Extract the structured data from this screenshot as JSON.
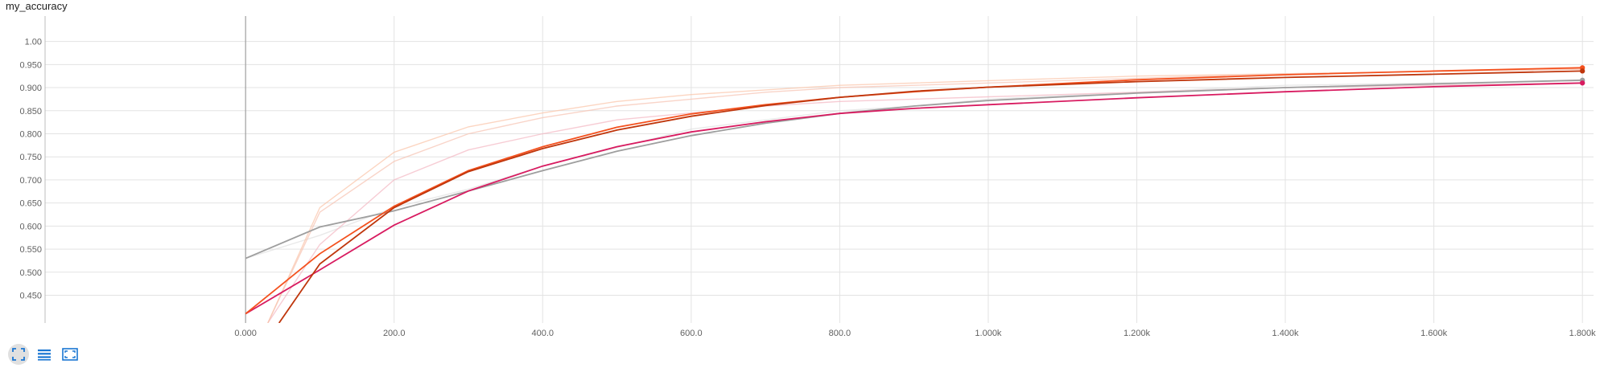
{
  "chart_data": {
    "type": "line",
    "title": "my_accuracy",
    "xlabel": "",
    "ylabel": "",
    "xlim": [
      -270,
      1815
    ],
    "ylim": [
      0.39,
      1.055
    ],
    "x_ticks": [
      0,
      200,
      400,
      600,
      800,
      1000,
      1200,
      1400,
      1600,
      1800
    ],
    "x_tick_labels": [
      "0.000",
      "200.0",
      "400.0",
      "600.0",
      "800.0",
      "1.000k",
      "1.200k",
      "1.400k",
      "1.600k",
      "1.800k"
    ],
    "y_ticks": [
      0.45,
      0.5,
      0.55,
      0.6,
      0.65,
      0.7,
      0.75,
      0.8,
      0.85,
      0.9,
      0.95,
      1.0
    ],
    "y_tick_labels": [
      "0.450",
      "0.500",
      "0.550",
      "0.600",
      "0.650",
      "0.700",
      "0.750",
      "0.800",
      "0.850",
      "0.900",
      "0.950",
      "1.00"
    ],
    "grid": true,
    "series": [
      {
        "color": "#e0e0e0",
        "faint": true,
        "x": [
          0,
          100,
          200,
          300,
          400,
          500,
          600,
          700,
          800,
          900,
          1000,
          1200,
          1400,
          1600,
          1800
        ],
        "y": [
          0.53,
          0.58,
          0.64,
          0.68,
          0.73,
          0.77,
          0.81,
          0.83,
          0.85,
          0.86,
          0.875,
          0.89,
          0.905,
          0.91,
          0.915
        ]
      },
      {
        "color": "#f4b6c2",
        "faint": true,
        "x": [
          30,
          100,
          200,
          300,
          400,
          500,
          600,
          700,
          800,
          900,
          1000,
          1200,
          1400,
          1600,
          1800
        ],
        "y": [
          0.39,
          0.56,
          0.7,
          0.765,
          0.8,
          0.83,
          0.845,
          0.86,
          0.87,
          0.875,
          0.88,
          0.89,
          0.9,
          0.905,
          0.91
        ]
      },
      {
        "color": "#fbc3a6",
        "faint": true,
        "x": [
          30,
          100,
          200,
          300,
          400,
          500,
          600,
          700,
          800,
          900,
          1000,
          1200,
          1400,
          1600,
          1800
        ],
        "y": [
          0.39,
          0.64,
          0.76,
          0.815,
          0.845,
          0.87,
          0.885,
          0.895,
          0.905,
          0.91,
          0.915,
          0.925,
          0.93,
          0.935,
          0.94
        ]
      },
      {
        "color": "#f7c2b0",
        "faint": true,
        "x": [
          30,
          100,
          200,
          300,
          400,
          500,
          600,
          700,
          800,
          900,
          1000,
          1200,
          1400,
          1600,
          1800
        ],
        "y": [
          0.39,
          0.63,
          0.74,
          0.8,
          0.835,
          0.86,
          0.875,
          0.89,
          0.9,
          0.905,
          0.91,
          0.92,
          0.93,
          0.935,
          0.94
        ]
      },
      {
        "color": "#9e9e9e",
        "faint": false,
        "x": [
          0,
          100,
          200,
          300,
          400,
          500,
          600,
          700,
          800,
          900,
          1000,
          1200,
          1400,
          1600,
          1800
        ],
        "y": [
          0.53,
          0.598,
          0.633,
          0.676,
          0.72,
          0.762,
          0.796,
          0.823,
          0.844,
          0.86,
          0.872,
          0.888,
          0.9,
          0.908,
          0.916
        ]
      },
      {
        "color": "#d81b60",
        "faint": false,
        "x": [
          0,
          100,
          200,
          300,
          400,
          500,
          600,
          700,
          800,
          900,
          1000,
          1200,
          1400,
          1600,
          1800
        ],
        "y": [
          0.41,
          0.505,
          0.602,
          0.676,
          0.73,
          0.772,
          0.804,
          0.826,
          0.844,
          0.855,
          0.863,
          0.878,
          0.891,
          0.902,
          0.91
        ]
      },
      {
        "color": "#f4511e",
        "faint": false,
        "x": [
          0,
          100,
          200,
          300,
          400,
          500,
          600,
          700,
          800,
          900,
          1000,
          1200,
          1400,
          1600,
          1800
        ],
        "y": [
          0.41,
          0.54,
          0.643,
          0.72,
          0.772,
          0.814,
          0.843,
          0.863,
          0.879,
          0.891,
          0.901,
          0.917,
          0.928,
          0.936,
          0.943
        ]
      },
      {
        "color": "#bf360c",
        "faint": false,
        "x": [
          45,
          100,
          200,
          300,
          400,
          500,
          600,
          700,
          800,
          900,
          1000,
          1200,
          1400,
          1600,
          1800
        ],
        "y": [
          0.39,
          0.518,
          0.64,
          0.718,
          0.768,
          0.808,
          0.838,
          0.861,
          0.879,
          0.892,
          0.901,
          0.913,
          0.922,
          0.929,
          0.936
        ]
      }
    ]
  },
  "toolbar": {
    "buttons": [
      {
        "icon": "fit-domain-icon",
        "active": true
      },
      {
        "icon": "list-icon",
        "active": false
      },
      {
        "icon": "expand-icon",
        "active": false
      }
    ]
  }
}
